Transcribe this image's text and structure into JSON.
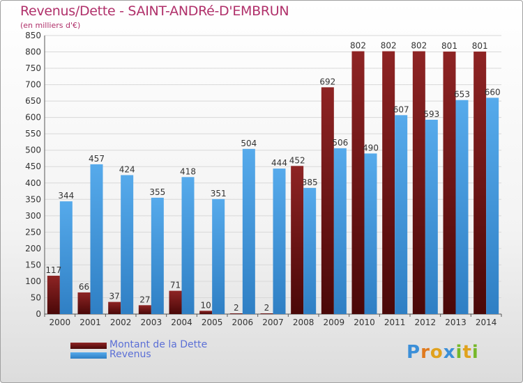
{
  "title": "Revenus/Dette - SAINT-ANDRé-D'EMBRUN",
  "subtitle": "(en milliers d'€)",
  "colors": {
    "dette": "#7a1a1a",
    "revenus": "#4aa0e0",
    "title": "#b0306a",
    "legend_text": "#5b6fd6"
  },
  "legend": {
    "dette_label": "Montant de la Dette",
    "revenus_label": "Revenus"
  },
  "logo": {
    "letters": [
      "P",
      "r",
      "o",
      "x",
      "i",
      "t",
      "i"
    ],
    "colors": [
      "#3b8fd8",
      "#e07a1e",
      "#e0a21e",
      "#3b8fd8",
      "#76b82a",
      "#e0a21e",
      "#76b82a"
    ]
  },
  "chart_data": {
    "type": "bar",
    "title": "Revenus/Dette - SAINT-ANDRé-D'EMBRUN",
    "subtitle": "(en milliers d'€)",
    "categories": [
      "2000",
      "2001",
      "2002",
      "2003",
      "2004",
      "2005",
      "2006",
      "2007",
      "2008",
      "2009",
      "2010",
      "2011",
      "2012",
      "2013",
      "2014"
    ],
    "series": [
      {
        "name": "Montant de la Dette",
        "values": [
          117,
          66,
          37,
          27,
          71,
          10,
          2,
          2,
          452,
          692,
          802,
          802,
          802,
          801,
          801
        ]
      },
      {
        "name": "Revenus",
        "values": [
          344,
          457,
          424,
          355,
          418,
          351,
          504,
          444,
          385,
          506,
          490,
          607,
          593,
          653,
          660
        ]
      }
    ],
    "ylim": [
      0,
      850
    ],
    "yticks": [
      0,
      50,
      100,
      150,
      200,
      250,
      300,
      350,
      400,
      450,
      500,
      550,
      600,
      650,
      700,
      750,
      800,
      850
    ],
    "grid": true,
    "legend_position": "bottom-left"
  }
}
